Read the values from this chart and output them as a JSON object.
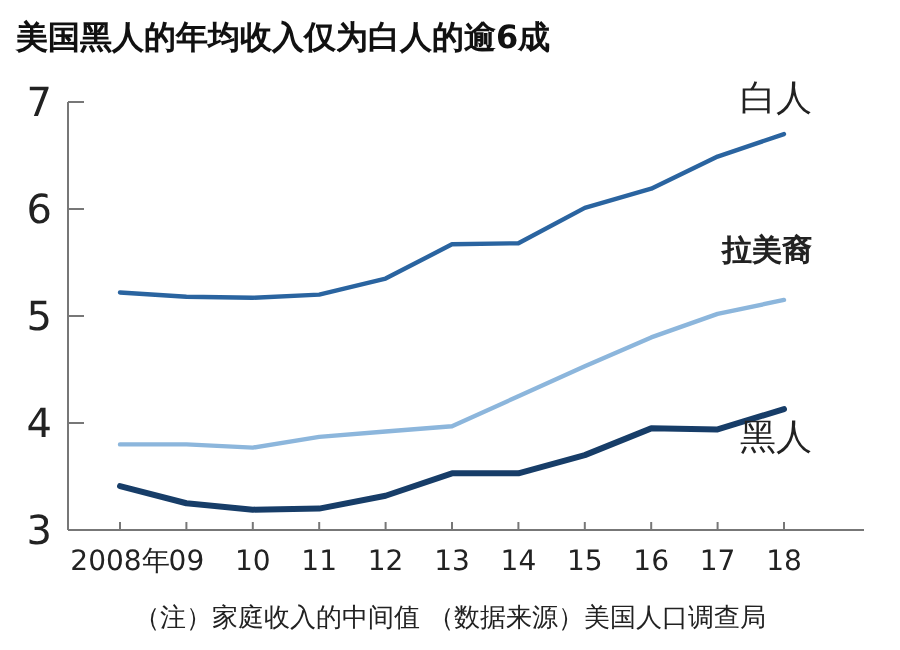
{
  "chart_data": {
    "type": "line",
    "title": "美国黑人的年均收入仅为白人的逾6成",
    "categories": [
      "2008年",
      "09",
      "10",
      "11",
      "12",
      "13",
      "14",
      "15",
      "16",
      "17",
      "18"
    ],
    "ylim": [
      3,
      7
    ],
    "yticks": [
      3,
      4,
      5,
      6,
      7
    ],
    "grid": false,
    "legend": false,
    "marker": "none",
    "line_style": "solid",
    "series": [
      {
        "name": "白人",
        "color": "#2a64a0",
        "values": [
          5.22,
          5.18,
          5.17,
          5.2,
          5.35,
          5.67,
          5.68,
          6.01,
          6.19,
          6.49,
          6.7
        ]
      },
      {
        "name": "拉美裔",
        "color": "#8cb6dc",
        "values": [
          3.8,
          3.8,
          3.77,
          3.87,
          3.92,
          3.97,
          4.25,
          4.53,
          4.8,
          5.02,
          5.15
        ]
      },
      {
        "name": "黑人",
        "color": "#173d68",
        "values": [
          3.41,
          3.25,
          3.19,
          3.2,
          3.32,
          3.53,
          3.53,
          3.7,
          3.95,
          3.94,
          4.13
        ]
      }
    ],
    "annotations": [
      "（注）家庭收入的中间值 （数据来源）美国人口调查局"
    ]
  }
}
